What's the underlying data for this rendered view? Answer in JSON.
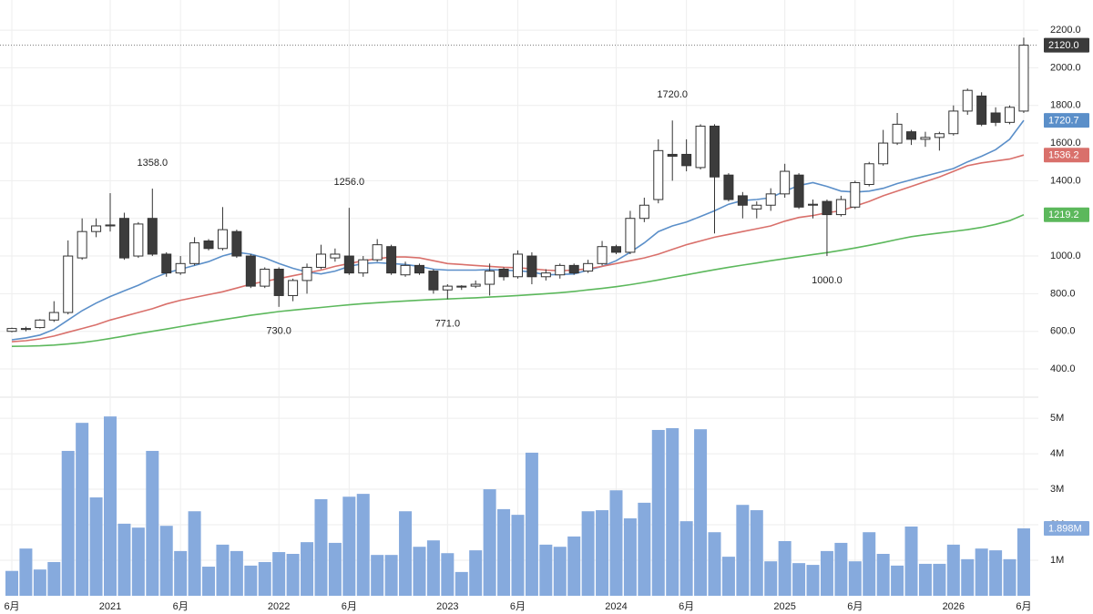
{
  "chart_data": {
    "type": "candlestick",
    "categories": [
      "6月",
      null,
      null,
      null,
      null,
      null,
      null,
      "2021",
      null,
      null,
      null,
      null,
      "6月",
      null,
      null,
      null,
      null,
      null,
      null,
      "2022",
      null,
      null,
      null,
      null,
      "6月",
      null,
      null,
      null,
      null,
      null,
      null,
      "2023",
      null,
      null,
      null,
      null,
      "6月",
      null,
      null,
      null,
      null,
      null,
      null,
      "2024",
      null,
      null,
      null,
      null,
      "6月",
      null,
      null,
      null,
      null,
      null,
      null,
      "2025",
      null,
      null,
      null,
      null,
      "6月",
      null,
      null,
      null,
      null,
      null,
      null,
      "2026",
      null,
      null,
      null,
      null,
      "6月"
    ],
    "open": [
      600,
      610,
      620,
      660,
      700,
      990,
      1130,
      1160,
      1200,
      1000,
      1200,
      1010,
      910,
      960,
      1080,
      1040,
      1130,
      1000,
      840,
      930,
      790,
      870,
      940,
      990,
      1000,
      910,
      980,
      1050,
      900,
      950,
      920,
      820,
      835,
      840,
      850,
      930,
      890,
      1000,
      890,
      900,
      950,
      920,
      960,
      1050,
      1020,
      1200,
      1300,
      1540,
      1540,
      1470,
      1690,
      1430,
      1320,
      1250,
      1270,
      1330,
      1430,
      1270,
      1290,
      1220,
      1260,
      1380,
      1490,
      1600,
      1660,
      1620,
      1630,
      1650,
      1770,
      1850,
      1760,
      1710,
      1770
    ],
    "high": [
      620,
      625,
      665,
      760,
      1083,
      1200,
      1200,
      1334,
      1230,
      1180,
      1358,
      1020,
      1000,
      1100,
      1090,
      1260,
      1140,
      1010,
      940,
      940,
      880,
      960,
      1060,
      1040,
      1256,
      1000,
      1090,
      1060,
      970,
      960,
      930,
      850,
      845,
      870,
      960,
      940,
      1030,
      1020,
      930,
      960,
      960,
      980,
      1080,
      1060,
      1240,
      1310,
      1620,
      1720,
      1620,
      1700,
      1700,
      1440,
      1340,
      1290,
      1360,
      1490,
      1440,
      1300,
      1300,
      1320,
      1400,
      1500,
      1670,
      1760,
      1670,
      1660,
      1660,
      1800,
      1890,
      1870,
      1790,
      1800,
      2160
    ],
    "low": [
      595,
      600,
      615,
      650,
      690,
      980,
      1100,
      1130,
      980,
      990,
      1000,
      890,
      900,
      950,
      1030,
      1030,
      990,
      830,
      830,
      730,
      760,
      800,
      930,
      970,
      900,
      890,
      970,
      900,
      890,
      900,
      800,
      771,
      820,
      830,
      790,
      870,
      880,
      850,
      870,
      880,
      900,
      910,
      950,
      1010,
      1010,
      1180,
      1280,
      1400,
      1450,
      1460,
      1120,
      1290,
      1200,
      1200,
      1240,
      1310,
      1250,
      1200,
      1000,
      1210,
      1250,
      1370,
      1480,
      1590,
      1590,
      1580,
      1560,
      1640,
      1750,
      1690,
      1690,
      1700,
      1760
    ],
    "close": [
      615,
      615,
      660,
      700,
      1000,
      1130,
      1160,
      1165,
      990,
      1170,
      1010,
      910,
      960,
      1070,
      1040,
      1140,
      1000,
      840,
      930,
      790,
      870,
      940,
      1010,
      1010,
      910,
      980,
      1060,
      910,
      950,
      910,
      820,
      840,
      840,
      850,
      920,
      890,
      1010,
      890,
      910,
      950,
      910,
      960,
      1050,
      1020,
      1200,
      1270,
      1560,
      1530,
      1480,
      1690,
      1420,
      1300,
      1270,
      1270,
      1330,
      1450,
      1260,
      1275,
      1220,
      1300,
      1390,
      1490,
      1600,
      1700,
      1620,
      1630,
      1650,
      1770,
      1880,
      1700,
      1710,
      1790,
      2120
    ],
    "high_labels": [
      null,
      null,
      null,
      null,
      null,
      null,
      null,
      null,
      null,
      null,
      "1358.0",
      null,
      null,
      null,
      null,
      null,
      null,
      null,
      null,
      null,
      null,
      null,
      null,
      null,
      "1256.0",
      null,
      null,
      null,
      null,
      null,
      null,
      null,
      null,
      null,
      null,
      null,
      null,
      null,
      null,
      null,
      null,
      null,
      null,
      null,
      null,
      null,
      null,
      "1720.0",
      null,
      null,
      null,
      null,
      null,
      null,
      null,
      null,
      null,
      null,
      null,
      null,
      null,
      null,
      null,
      null,
      null,
      null,
      null,
      null,
      null,
      null,
      null,
      null,
      null
    ],
    "low_labels": [
      null,
      null,
      null,
      null,
      null,
      null,
      null,
      null,
      null,
      null,
      null,
      null,
      null,
      null,
      null,
      null,
      null,
      null,
      null,
      "730.0",
      null,
      null,
      null,
      null,
      null,
      null,
      null,
      null,
      null,
      null,
      null,
      "771.0",
      null,
      null,
      null,
      null,
      null,
      null,
      null,
      null,
      null,
      null,
      null,
      null,
      null,
      null,
      null,
      null,
      null,
      null,
      null,
      null,
      null,
      null,
      null,
      null,
      null,
      null,
      "1000.0",
      null,
      null,
      null,
      null,
      null,
      null,
      null,
      null,
      null,
      null,
      null,
      null,
      null,
      null
    ],
    "close_label": "2120.0",
    "close_color": "#3a3a3a",
    "up_color": "#ffffff",
    "down_color": "#3c3c3c",
    "ylim": [
      255,
      2360
    ],
    "yticks": [
      {
        "value": 400,
        "label": "400.0"
      },
      {
        "value": 600,
        "label": "600.0"
      },
      {
        "value": 800,
        "label": "800.0"
      },
      {
        "value": 1000,
        "label": "1000.0"
      },
      {
        "value": 1200,
        "label": "1200.0"
      },
      {
        "value": 1400,
        "label": "1400.0"
      },
      {
        "value": 1600,
        "label": "1600.0"
      },
      {
        "value": 1800,
        "label": "1800.0"
      },
      {
        "value": 2000,
        "label": "2000.0"
      },
      {
        "value": 2200,
        "label": "2200.0"
      }
    ],
    "grid": true,
    "series": [
      {
        "color": "#5b8fc9",
        "last_label": "1720.7",
        "values": [
          555,
          565,
          580,
          610,
          660,
          710,
          750,
          785,
          815,
          845,
          880,
          910,
          930,
          950,
          970,
          1000,
          1020,
          1010,
          990,
          960,
          935,
          915,
          905,
          920,
          945,
          960,
          965,
          960,
          955,
          945,
          930,
          925,
          925,
          925,
          928,
          925,
          922,
          915,
          900,
          902,
          905,
          925,
          945,
          975,
          1020,
          1070,
          1130,
          1160,
          1180,
          1210,
          1240,
          1275,
          1295,
          1300,
          1310,
          1345,
          1375,
          1390,
          1370,
          1345,
          1340,
          1345,
          1360,
          1385,
          1405,
          1425,
          1445,
          1465,
          1500,
          1530,
          1565,
          1620,
          1720.7
        ]
      },
      {
        "color": "#d9706b",
        "last_label": "1536.2",
        "values": [
          545,
          550,
          560,
          575,
          595,
          615,
          635,
          660,
          680,
          700,
          720,
          745,
          765,
          780,
          795,
          810,
          830,
          850,
          865,
          880,
          895,
          910,
          925,
          945,
          960,
          975,
          985,
          995,
          995,
          990,
          975,
          960,
          955,
          950,
          945,
          940,
          938,
          932,
          925,
          922,
          925,
          932,
          945,
          960,
          975,
          990,
          1010,
          1035,
          1060,
          1080,
          1100,
          1115,
          1130,
          1145,
          1160,
          1185,
          1205,
          1215,
          1230,
          1240,
          1265,
          1290,
          1320,
          1345,
          1370,
          1395,
          1420,
          1450,
          1480,
          1495,
          1505,
          1515,
          1536.2
        ]
      },
      {
        "color": "#5cb85c",
        "last_label": "1219.2",
        "values": [
          520,
          521,
          523,
          527,
          533,
          540,
          550,
          562,
          575,
          588,
          600,
          612,
          625,
          638,
          650,
          662,
          673,
          685,
          695,
          705,
          713,
          720,
          727,
          734,
          741,
          747,
          752,
          757,
          761,
          765,
          769,
          772,
          775,
          778,
          782,
          786,
          790,
          795,
          800,
          805,
          812,
          820,
          828,
          837,
          848,
          860,
          873,
          887,
          900,
          914,
          927,
          940,
          952,
          963,
          975,
          986,
          997,
          1008,
          1018,
          1030,
          1043,
          1057,
          1072,
          1088,
          1103,
          1113,
          1122,
          1131,
          1140,
          1152,
          1168,
          1188,
          1219.2
        ]
      }
    ],
    "volume": {
      "color": "#86aadd",
      "ylim": [
        0,
        5.49
      ],
      "yticks": [
        {
          "value": 1,
          "label": "1M"
        },
        {
          "value": 2,
          "label": "2M"
        },
        {
          "value": 3,
          "label": "3M"
        },
        {
          "value": 4,
          "label": "4M"
        },
        {
          "value": 5,
          "label": "5M"
        }
      ],
      "values": [
        0.7,
        1.33,
        0.74,
        0.95,
        4.08,
        4.87,
        2.77,
        5.05,
        2.03,
        1.92,
        4.08,
        1.97,
        1.26,
        2.38,
        0.82,
        1.44,
        1.26,
        0.85,
        0.95,
        1.23,
        1.18,
        1.51,
        2.72,
        1.49,
        2.79,
        2.87,
        1.15,
        1.15,
        2.38,
        1.38,
        1.56,
        1.2,
        0.67,
        1.28,
        3.0,
        2.44,
        2.28,
        4.03,
        1.44,
        1.38,
        1.67,
        2.38,
        2.41,
        2.97,
        2.18,
        2.62,
        4.67,
        4.72,
        2.1,
        4.69,
        1.79,
        1.1,
        2.56,
        2.41,
        0.97,
        1.54,
        0.92,
        0.87,
        1.26,
        1.49,
        0.97,
        1.79,
        1.18,
        0.85,
        1.95,
        0.9,
        0.9,
        1.44,
        1.03,
        1.33,
        1.28,
        1.03,
        1.898
      ],
      "last_label": "1.898M"
    }
  }
}
